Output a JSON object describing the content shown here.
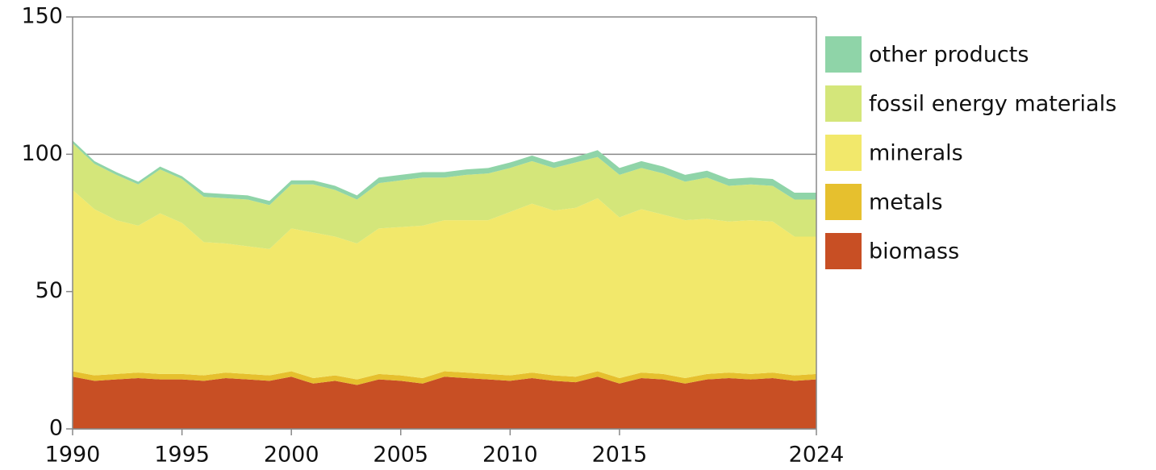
{
  "chart_data": {
    "type": "stacked_area",
    "x": [
      1990,
      1991,
      1992,
      1993,
      1994,
      1995,
      1996,
      1997,
      1998,
      1999,
      2000,
      2001,
      2002,
      2003,
      2004,
      2005,
      2006,
      2007,
      2008,
      2009,
      2010,
      2011,
      2012,
      2013,
      2014,
      2015,
      2016,
      2017,
      2018,
      2019,
      2020,
      2021,
      2022,
      2023,
      2024
    ],
    "xlim": [
      1990,
      2024
    ],
    "xticks": [
      1990,
      1995,
      2000,
      2005,
      2010,
      2015,
      2024
    ],
    "ylim": [
      0,
      150
    ],
    "yticks": [
      0,
      50,
      100,
      150
    ],
    "grid": true,
    "legend": "right",
    "series": [
      {
        "name": "biomass",
        "color": "#c84f24",
        "values": [
          19,
          17.5,
          18,
          18.5,
          18,
          18,
          17.5,
          18.5,
          18,
          17.5,
          19,
          16.5,
          17.5,
          16,
          18,
          17.5,
          16.5,
          19,
          18.5,
          18,
          17.5,
          18.5,
          17.5,
          17,
          19,
          16.5,
          18.5,
          18,
          16.5,
          18,
          18.5,
          18,
          18.5,
          17.5,
          18
        ]
      },
      {
        "name": "metals",
        "color": "#e6c02e",
        "values": [
          2,
          2,
          2,
          2,
          2,
          2,
          2,
          2,
          2,
          2,
          2,
          2,
          2,
          2,
          2,
          2,
          2,
          2,
          2,
          2,
          2,
          2,
          2,
          2,
          2,
          2,
          2,
          2,
          2,
          2,
          2,
          2,
          2,
          2,
          2
        ]
      },
      {
        "name": "minerals",
        "color": "#f2e86b",
        "values": [
          66,
          60.5,
          56,
          53.5,
          58.5,
          55,
          48.5,
          47,
          46.5,
          46,
          52,
          53,
          50.5,
          49.5,
          53,
          54,
          55.5,
          55,
          55.5,
          56,
          59.5,
          61.5,
          60,
          61.5,
          63,
          58.5,
          59.5,
          58,
          57.5,
          56.5,
          55,
          56,
          55,
          50.5,
          50
        ]
      },
      {
        "name": "fossil energy materials",
        "color": "#d4e67a",
        "values": [
          17,
          16.5,
          16.5,
          15,
          16,
          16,
          16.5,
          16.5,
          17,
          16,
          16,
          17.5,
          17,
          16,
          16.5,
          17,
          17.5,
          15.5,
          16.5,
          17,
          16,
          15.5,
          15.5,
          16.5,
          15,
          15.5,
          15,
          15,
          14,
          15,
          13,
          13,
          13,
          13.5,
          13.5
        ]
      },
      {
        "name": "other products",
        "color": "#8fd4a8",
        "values": [
          1,
          1,
          1,
          1,
          1,
          1,
          1.5,
          1.5,
          1.5,
          1.5,
          1.5,
          1.5,
          1.5,
          1.5,
          2,
          2,
          2,
          2,
          2,
          2,
          2,
          2,
          2,
          2,
          2.5,
          2.5,
          2.5,
          2.5,
          2.5,
          2.5,
          2.5,
          2.5,
          2.5,
          2.5,
          2.5
        ]
      }
    ]
  }
}
